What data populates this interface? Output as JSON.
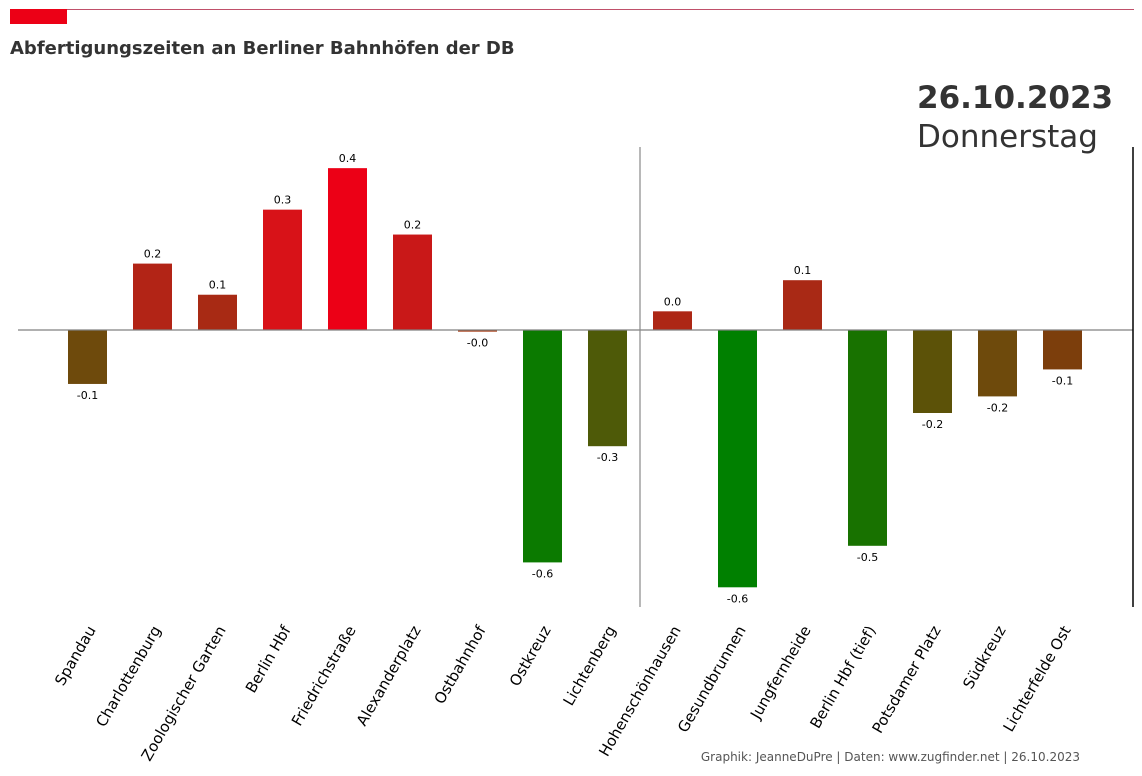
{
  "header": {
    "title": "Abfertigungszeiten an Berliner Bahnhöfen der DB",
    "date": "26.10.2023",
    "weekday": "Donnerstag"
  },
  "footer": {
    "credit": "Graphik: JeanneDuPre | Daten: www.zugfinder.net | 26.10.2023"
  },
  "colors": {
    "brand": "#ec0016",
    "positive_max": "#ec0016",
    "negative_max": "#008000",
    "zero_line": "#808080",
    "text": "#333333"
  },
  "chart_data": {
    "type": "bar",
    "title": "Abfertigungszeiten an Berliner Bahnhöfen der DB",
    "xlabel": "",
    "ylabel": "",
    "ylim": [
      -0.6,
      0.42
    ],
    "grid": false,
    "categories": [
      "Spandau",
      "Charlottenburg",
      "Zoologischer Garten",
      "Berlin Hbf",
      "Friedrichstraße",
      "Alexanderplatz",
      "Ostbahnhof",
      "Ostkreuz",
      "Lichtenberg",
      "Hohenschönhausen",
      "Gesundbrunnen",
      "Jungfernheide",
      "Berlin Hbf (tief)",
      "Potsdamer Platz",
      "Südkreuz",
      "Lichterfelde Ost"
    ],
    "values": [
      -0.13,
      0.16,
      0.085,
      0.29,
      0.39,
      0.23,
      -0.004,
      -0.56,
      -0.28,
      0.045,
      -0.62,
      0.12,
      -0.52,
      -0.2,
      -0.16,
      -0.095
    ],
    "data_labels": [
      "-0.1",
      "0.2",
      "0.1",
      "0.3",
      "0.4",
      "0.2",
      "-0.0",
      "-0.6",
      "-0.3",
      "0.0",
      "-0.6",
      "0.1",
      "-0.5",
      "-0.2",
      "-0.2",
      "-0.1"
    ],
    "colors": [
      "#6e4a0c",
      "#b22416",
      "#a82a14",
      "#d81218",
      "#ec0016",
      "#c91818",
      "#a63a12",
      "#0b7a00",
      "#4e5a08",
      "#ad2715",
      "#008000",
      "#a92915",
      "#187200",
      "#5c5208",
      "#6e4a0c",
      "#7c3e0c"
    ],
    "separator_after_index": 8
  }
}
